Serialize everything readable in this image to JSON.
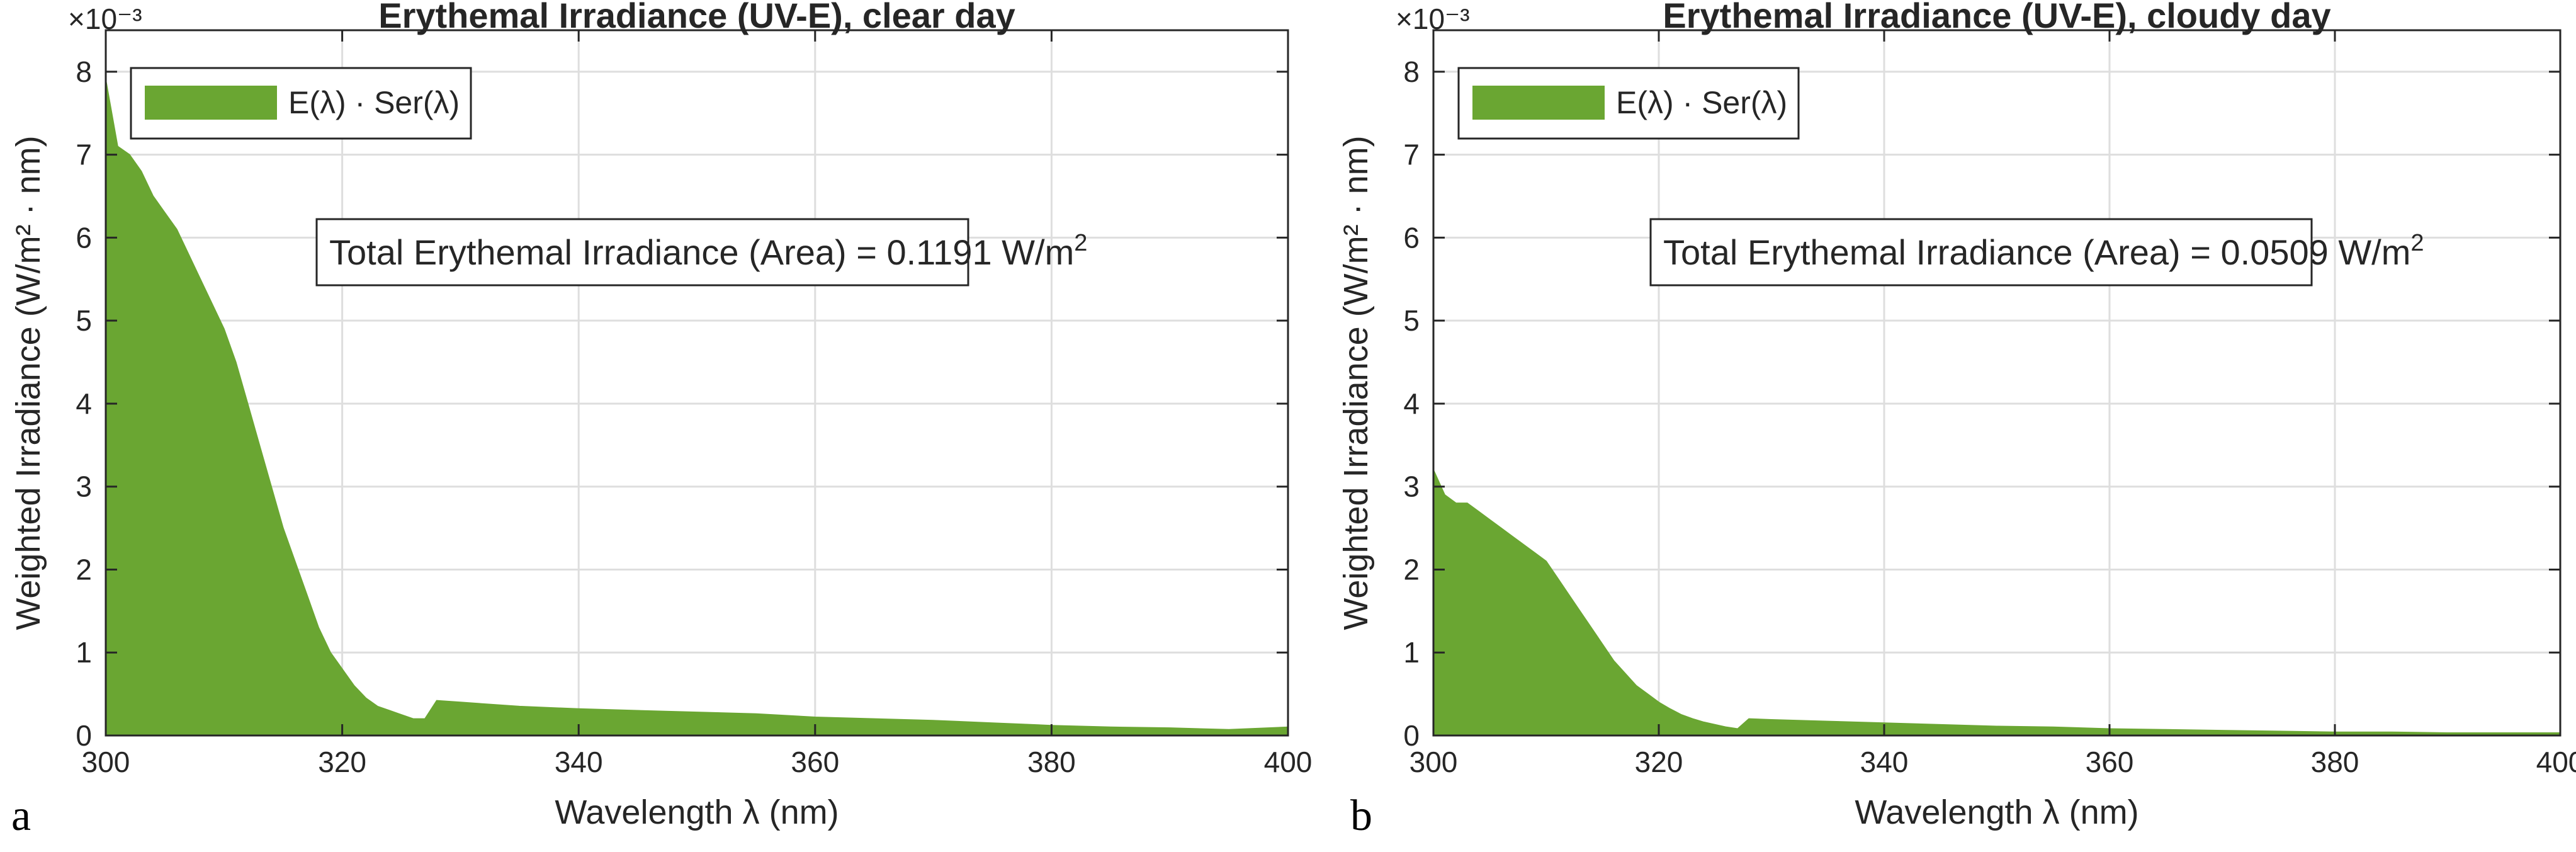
{
  "chart_data": [
    {
      "type": "area",
      "panel": "a",
      "title": "Erythemal Irradiance (UV-E), clear day",
      "xlabel": "Wavelength λ (nm)",
      "ylabel": "Weighted Irradiance (W/m² · nm)",
      "y_exponent": "×10⁻³",
      "xlim": [
        300,
        400
      ],
      "ylim": [
        0,
        0.0085
      ],
      "x_ticks": [
        "300",
        "320",
        "340",
        "360",
        "380",
        "400"
      ],
      "y_ticks": [
        "0",
        "1",
        "2",
        "3",
        "4",
        "5",
        "6",
        "7",
        "8"
      ],
      "grid": true,
      "legend": "top-left",
      "series": [
        {
          "name": "E(λ) · Ser(λ)",
          "color": "#6aa632",
          "x": [
            300,
            301,
            302,
            303,
            304,
            305,
            306,
            307,
            308,
            309,
            310,
            311,
            312,
            313,
            314,
            315,
            316,
            317,
            318,
            319,
            320,
            321,
            322,
            323,
            324,
            325,
            326,
            327,
            328,
            330,
            335,
            340,
            345,
            350,
            355,
            360,
            365,
            370,
            375,
            380,
            385,
            390,
            395,
            400
          ],
          "values": [
            0.0079,
            0.0071,
            0.007,
            0.0068,
            0.0065,
            0.0063,
            0.0061,
            0.0058,
            0.0055,
            0.0052,
            0.0049,
            0.0045,
            0.004,
            0.0035,
            0.003,
            0.0025,
            0.0021,
            0.0017,
            0.0013,
            0.001,
            0.0008,
            0.0006,
            0.00045,
            0.00035,
            0.0003,
            0.00025,
            0.0002,
            0.0002,
            0.00042,
            0.0004,
            0.00035,
            0.00032,
            0.0003,
            0.00028,
            0.00026,
            0.00022,
            0.0002,
            0.00018,
            0.00015,
            0.00012,
            0.0001,
            9e-05,
            7e-05,
            0.0001
          ]
        }
      ],
      "annotation": {
        "text": "Total Erythemal Irradiance (Area) = 0.1191 W/m",
        "superscript": "2"
      }
    },
    {
      "type": "area",
      "panel": "b",
      "title": "Erythemal Irradiance (UV-E), cloudy day",
      "xlabel": "Wavelength λ (nm)",
      "ylabel": "Weighted Irradiance (W/m² · nm)",
      "y_exponent": "×10⁻³",
      "xlim": [
        300,
        400
      ],
      "ylim": [
        0,
        0.0085
      ],
      "x_ticks": [
        "300",
        "320",
        "340",
        "360",
        "380",
        "400"
      ],
      "y_ticks": [
        "0",
        "1",
        "2",
        "3",
        "4",
        "5",
        "6",
        "7",
        "8"
      ],
      "grid": true,
      "legend": "top-left",
      "series": [
        {
          "name": "E(λ) · Ser(λ)",
          "color": "#6aa632",
          "x": [
            300,
            301,
            302,
            303,
            304,
            305,
            306,
            307,
            308,
            309,
            310,
            311,
            312,
            313,
            314,
            315,
            316,
            317,
            318,
            319,
            320,
            321,
            322,
            323,
            324,
            325,
            326,
            327,
            328,
            330,
            335,
            340,
            345,
            350,
            355,
            360,
            365,
            370,
            375,
            380,
            385,
            390,
            395,
            400
          ],
          "values": [
            0.0032,
            0.0029,
            0.0028,
            0.0028,
            0.0027,
            0.0026,
            0.0025,
            0.0024,
            0.0023,
            0.0022,
            0.0021,
            0.0019,
            0.0017,
            0.0015,
            0.0013,
            0.0011,
            0.0009,
            0.00075,
            0.0006,
            0.0005,
            0.0004,
            0.00032,
            0.00025,
            0.0002,
            0.00016,
            0.00013,
            0.0001,
            8e-05,
            0.0002,
            0.00019,
            0.00017,
            0.00015,
            0.00013,
            0.00011,
            0.0001,
            8e-05,
            7e-05,
            6e-05,
            5e-05,
            4e-05,
            4e-05,
            3e-05,
            3e-05,
            3e-05
          ]
        }
      ],
      "annotation": {
        "text": "Total Erythemal Irradiance (Area) = 0.0509 W/m",
        "superscript": "2"
      }
    }
  ]
}
